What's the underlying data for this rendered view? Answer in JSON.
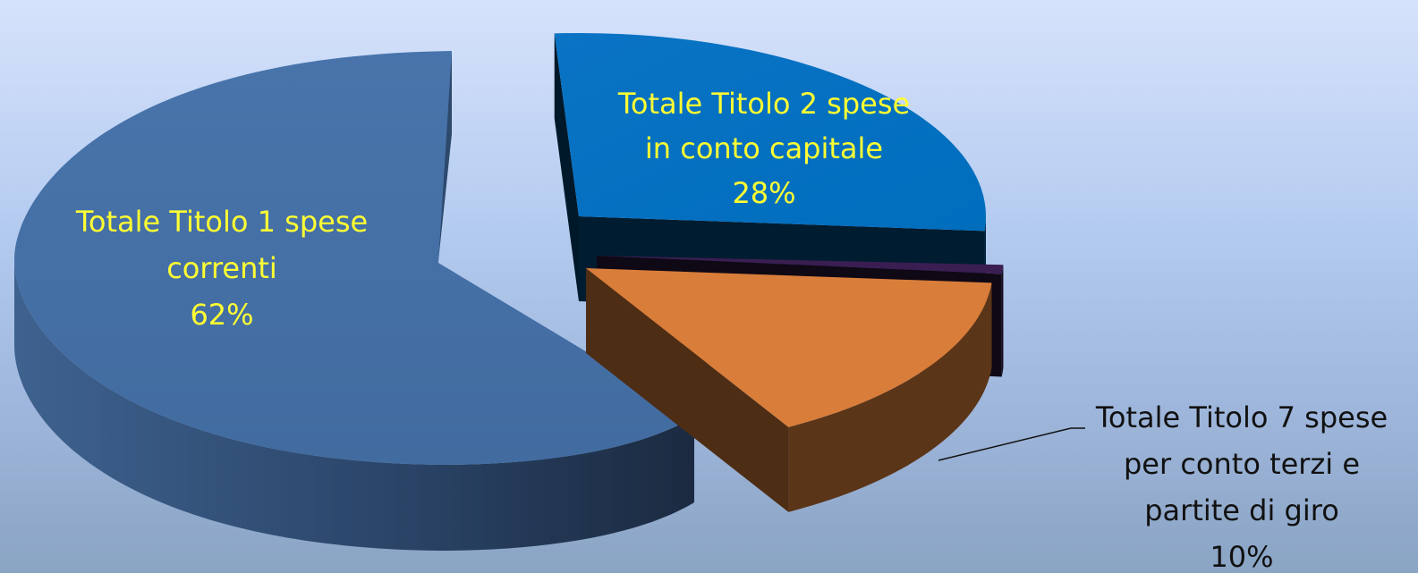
{
  "chart_data": {
    "type": "pie",
    "title": "",
    "slices": [
      {
        "name": "Totale Titolo 1 spese correnti",
        "percent": 62,
        "value_label": "62%",
        "label_lines": [
          "Totale Titolo 1 spese",
          "correnti",
          "62%"
        ],
        "color": "#4570a6",
        "label_color": "#ffff33"
      },
      {
        "name": "Totale Titolo 2 spese in conto capitale",
        "percent": 28,
        "value_label": "28%",
        "label_lines": [
          "Totale Titolo 2 spese",
          "in conto capitale",
          "28%"
        ],
        "color": "#0070c0",
        "label_color": "#ffff33"
      },
      {
        "name": "Totale Titolo 7 spese per conto terzi e partite di giro",
        "percent": 10,
        "value_label": "10%",
        "label_lines": [
          "Totale Titolo 7 spese",
          "per conto terzi e",
          "partite di giro",
          "10%"
        ],
        "color": "#d97d3a",
        "label_color": "#111111"
      },
      {
        "name": "",
        "percent": 0.4,
        "value_label": "",
        "label_lines": [],
        "color": "#3a1e52",
        "label_color": "#111111"
      }
    ],
    "style": "3d-exploded",
    "legend": "none"
  }
}
